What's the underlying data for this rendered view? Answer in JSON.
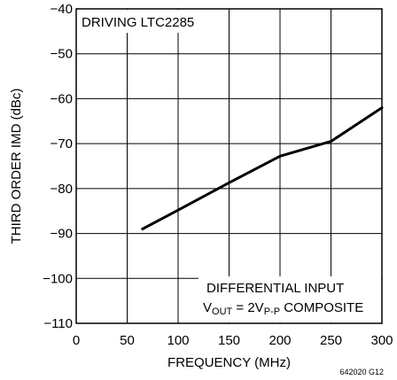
{
  "chart_data": {
    "type": "line",
    "title": "",
    "xlabel": "FREQUENCY (MHz)",
    "ylabel": "THIRD ORDER IMD (dBc)",
    "xlim": [
      0,
      300
    ],
    "ylim": [
      -110,
      -40
    ],
    "x_ticks": [
      0,
      50,
      100,
      150,
      200,
      250,
      300
    ],
    "y_ticks": [
      -110,
      -100,
      -90,
      -80,
      -70,
      -60,
      -50,
      -40
    ],
    "x_tick_labels": [
      "0",
      "50",
      "100",
      "150",
      "200",
      "250",
      "300"
    ],
    "y_tick_labels": [
      "−110",
      "−100",
      "−90",
      "−80",
      "−70",
      "−60",
      "−50",
      "−40"
    ],
    "grid": true,
    "series": [
      {
        "x": [
          65,
          100,
          150,
          200,
          250,
          300
        ],
        "y": [
          -89,
          -84.8,
          -78.7,
          -72.8,
          -69.5,
          -62
        ]
      }
    ],
    "annotations": {
      "top_left": "DRIVING LTC2285",
      "bottom_right_line1": "DIFFERENTIAL INPUT",
      "bottom_right_line2_prefix": "V",
      "bottom_right_line2_sub1": "OUT",
      "bottom_right_line2_mid": " = 2V",
      "bottom_right_line2_sub2": "P-P",
      "bottom_right_line2_suffix": " COMPOSITE"
    },
    "figure_id": "642020 G12"
  }
}
